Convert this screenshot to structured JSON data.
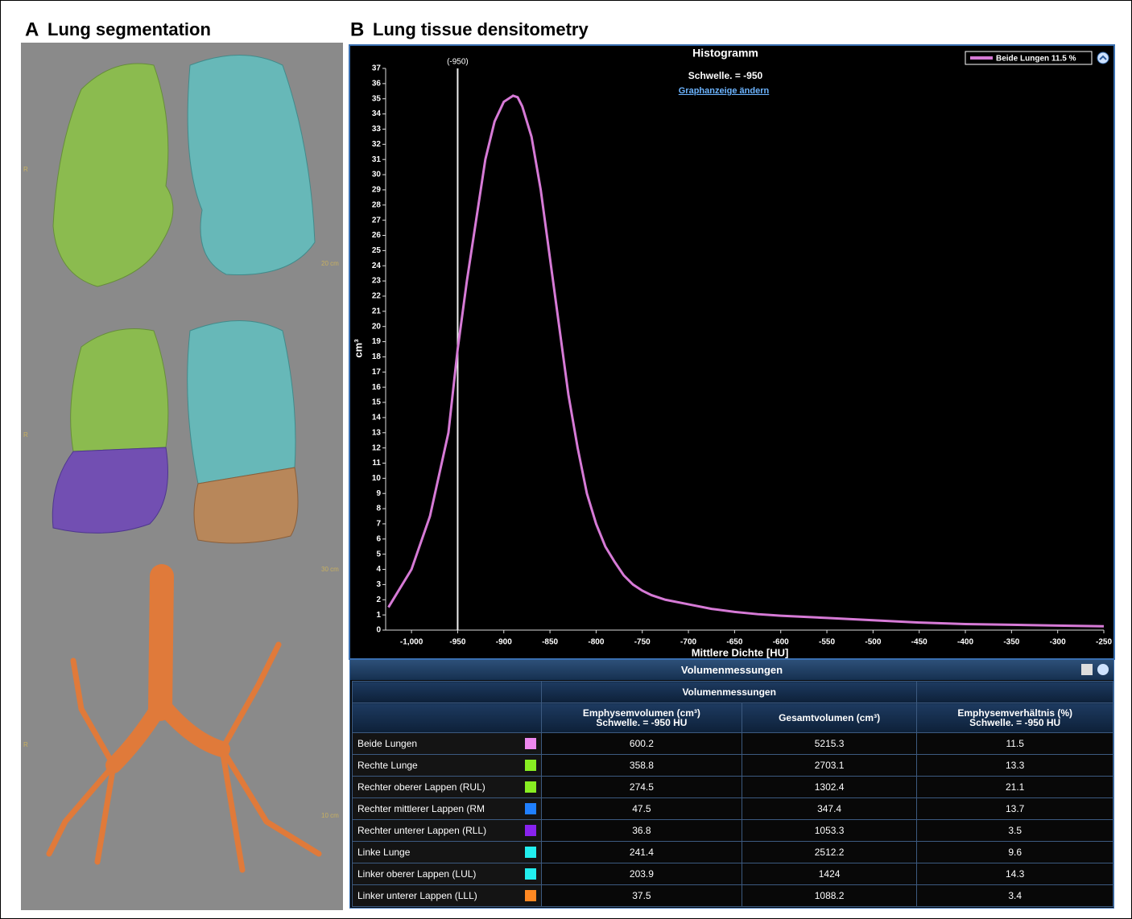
{
  "panel_a": {
    "letter": "A",
    "title": "Lung segmentation",
    "side_labels": [
      "R",
      "R",
      "R"
    ],
    "scale_labels": [
      "20 cm",
      "30 cm",
      "10 cm"
    ]
  },
  "panel_b": {
    "letter": "B",
    "title": "Lung tissue densitometry"
  },
  "chart_data": {
    "type": "line",
    "title": "Histogramm",
    "subtitle": "Schwelle. = -950",
    "link": "Graphanzeige ändern",
    "x_label": "Mittlere Dichte [HU]",
    "y_label": "cm³",
    "x": [
      -1025,
      -1000,
      -980,
      -960,
      -950,
      -940,
      -930,
      -920,
      -910,
      -900,
      -890,
      -885,
      -880,
      -870,
      -860,
      -850,
      -840,
      -830,
      -820,
      -810,
      -800,
      -790,
      -780,
      -770,
      -760,
      -750,
      -740,
      -725,
      -700,
      -675,
      -650,
      -625,
      -600,
      -550,
      -500,
      -450,
      -400,
      -350,
      -300,
      -250
    ],
    "series": [
      {
        "name": "Beide Lungen 11.5 %",
        "color": "#d67ad6",
        "values": [
          1.5,
          4,
          7.5,
          13,
          18.5,
          23,
          27,
          31,
          33.5,
          34.8,
          35.2,
          35.1,
          34.5,
          32.5,
          29,
          24.5,
          20,
          15.5,
          12,
          9,
          7,
          5.5,
          4.5,
          3.6,
          3,
          2.6,
          2.3,
          2,
          1.7,
          1.4,
          1.2,
          1.05,
          0.95,
          0.8,
          0.65,
          0.5,
          0.4,
          0.35,
          0.3,
          0.25
        ]
      }
    ],
    "threshold": {
      "value": -950,
      "label": "(-950)"
    },
    "xlim": [
      -1028,
      -250
    ],
    "ylim": [
      0,
      37
    ],
    "xticks": [
      {
        "value": -1000,
        "label": "-1,000"
      },
      -950,
      -900,
      -850,
      -800,
      -750,
      -700,
      -650,
      -600,
      -550,
      -500,
      -450,
      -400,
      -350,
      -300,
      -250
    ],
    "yticks": [
      0,
      1,
      2,
      3,
      4,
      5,
      6,
      7,
      8,
      9,
      10,
      11,
      12,
      13,
      14,
      15,
      16,
      17,
      18,
      19,
      20,
      21,
      22,
      23,
      24,
      25,
      26,
      27,
      28,
      29,
      30,
      31,
      32,
      33,
      34,
      35,
      36,
      37
    ]
  },
  "table": {
    "title": "Volumenmessungen",
    "group_header": "Volumenmessungen",
    "columns": [
      [
        "Emphysemvolumen (cm³)",
        "Schwelle. = -950 HU"
      ],
      [
        "Gesamtvolumen (cm³)"
      ],
      [
        "Emphysemverhältnis (%)",
        "Schwelle. = -950 HU"
      ]
    ],
    "rows": [
      {
        "name": "Beide Lungen",
        "color": "#ee88ee",
        "values": [
          600.2,
          5215.3,
          11.5
        ]
      },
      {
        "name": "Rechte Lunge",
        "color": "#88ee22",
        "values": [
          358.8,
          2703.1,
          13.3
        ]
      },
      {
        "name": "Rechter oberer Lappen (RUL)",
        "color": "#88ee22",
        "values": [
          274.5,
          1302.4,
          21.1
        ]
      },
      {
        "name": "Rechter mittlerer Lappen (RM",
        "color": "#2080ff",
        "values": [
          47.5,
          347.4,
          13.7
        ]
      },
      {
        "name": "Rechter unterer Lappen (RLL)",
        "color": "#8822ee",
        "values": [
          36.8,
          1053.3,
          3.5
        ]
      },
      {
        "name": "Linke Lunge",
        "color": "#22eeee",
        "values": [
          241.4,
          2512.2,
          9.6
        ]
      },
      {
        "name": "Linker oberer Lappen (LUL)",
        "color": "#22eeee",
        "values": [
          203.9,
          1424,
          14.3
        ]
      },
      {
        "name": "Linker unterer Lappen (LLL)",
        "color": "#ff8822",
        "values": [
          37.5,
          1088.2,
          3.4
        ]
      }
    ]
  }
}
